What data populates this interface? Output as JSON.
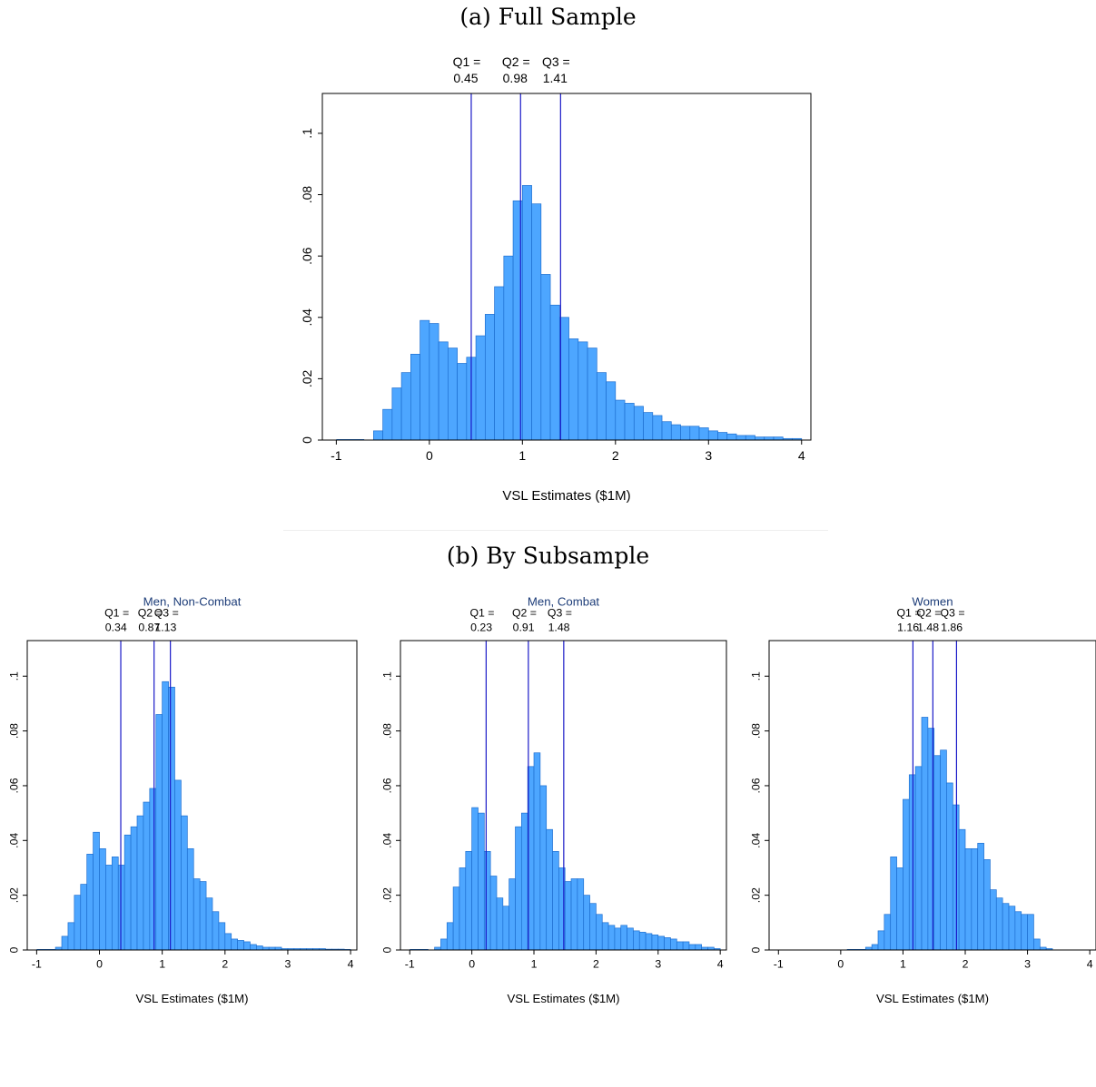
{
  "captions": {
    "a": "(a) Full Sample",
    "b": "(b) By Subsample"
  },
  "colors": {
    "bar_fill": "#4da6ff",
    "bar_edge": "#1e6fd0",
    "quartile_line": "#1a1ac8",
    "subtitle": "#1c3c78"
  },
  "chart_data": [
    {
      "type": "bar",
      "title": "",
      "xlabel": "VSL Estimates ($1M)",
      "ylabel": "",
      "xlim": [
        -1.15,
        4.1
      ],
      "ylim": [
        0,
        0.113
      ],
      "xticks": [
        "-1",
        "0",
        "1",
        "2",
        "3",
        "4"
      ],
      "yticks": [
        "0",
        ".02",
        ".04",
        ".06",
        ".08",
        ".1"
      ],
      "bin_start": -0.7,
      "bin_width": 0.1,
      "values": [
        0.0,
        0.003,
        0.01,
        0.017,
        0.022,
        0.028,
        0.039,
        0.038,
        0.032,
        0.03,
        0.025,
        0.027,
        0.034,
        0.041,
        0.05,
        0.06,
        0.078,
        0.083,
        0.077,
        0.054,
        0.044,
        0.04,
        0.033,
        0.032,
        0.03,
        0.022,
        0.019,
        0.013,
        0.012,
        0.011,
        0.009,
        0.008,
        0.006,
        0.005,
        0.0045,
        0.0045,
        0.004,
        0.003,
        0.0025,
        0.002,
        0.0015,
        0.0015,
        0.001,
        0.001,
        0.001,
        0.0005,
        0.0005
      ],
      "quartiles": [
        {
          "label": "Q1 =",
          "value": "0.45",
          "x": 0.45
        },
        {
          "label": "Q2 =",
          "value": "0.98",
          "x": 0.98
        },
        {
          "label": "Q3 =",
          "value": "1.41",
          "x": 1.41
        }
      ]
    },
    {
      "type": "bar",
      "title": "Men, Non-Combat",
      "xlabel": "VSL Estimates ($1M)",
      "ylabel": "",
      "xlim": [
        -1.15,
        4.1
      ],
      "ylim": [
        0,
        0.113
      ],
      "xticks": [
        "-1",
        "0",
        "1",
        "2",
        "3",
        "4"
      ],
      "yticks": [
        "0",
        ".02",
        ".04",
        ".06",
        ".08",
        ".1"
      ],
      "bin_start": -0.7,
      "bin_width": 0.1,
      "values": [
        0.001,
        0.005,
        0.01,
        0.02,
        0.024,
        0.035,
        0.043,
        0.037,
        0.031,
        0.034,
        0.031,
        0.042,
        0.045,
        0.049,
        0.054,
        0.059,
        0.086,
        0.098,
        0.096,
        0.062,
        0.049,
        0.037,
        0.026,
        0.025,
        0.019,
        0.014,
        0.01,
        0.006,
        0.004,
        0.0035,
        0.003,
        0.002,
        0.0015,
        0.001,
        0.001,
        0.001,
        0.0005,
        0.0005,
        0.0005,
        0.0005,
        0.0005,
        0.0005,
        0.0005,
        0.0003,
        0.0003,
        0.0003,
        0.0002
      ],
      "quartiles": [
        {
          "label": "Q1 =",
          "value": "0.34",
          "x": 0.34
        },
        {
          "label": "Q2 =",
          "value": "0.87",
          "x": 0.87
        },
        {
          "label": "Q3 =",
          "value": "1.13",
          "x": 1.13
        }
      ]
    },
    {
      "type": "bar",
      "title": "Men, Combat",
      "xlabel": "VSL Estimates ($1M)",
      "ylabel": "",
      "xlim": [
        -1.15,
        4.1
      ],
      "ylim": [
        0,
        0.113
      ],
      "xticks": [
        "-1",
        "0",
        "1",
        "2",
        "3",
        "4"
      ],
      "yticks": [
        "0",
        ".02",
        ".04",
        ".06",
        ".08",
        ".1"
      ],
      "bin_start": -0.7,
      "bin_width": 0.1,
      "values": [
        0.0,
        0.001,
        0.004,
        0.01,
        0.023,
        0.03,
        0.036,
        0.052,
        0.05,
        0.036,
        0.027,
        0.019,
        0.016,
        0.026,
        0.045,
        0.05,
        0.067,
        0.072,
        0.06,
        0.044,
        0.036,
        0.03,
        0.025,
        0.026,
        0.026,
        0.02,
        0.017,
        0.013,
        0.01,
        0.009,
        0.008,
        0.009,
        0.008,
        0.007,
        0.0065,
        0.006,
        0.0055,
        0.005,
        0.0045,
        0.004,
        0.003,
        0.003,
        0.002,
        0.002,
        0.001,
        0.001,
        0.0005
      ],
      "quartiles": [
        {
          "label": "Q1 =",
          "value": "0.23",
          "x": 0.23
        },
        {
          "label": "Q2 =",
          "value": "0.91",
          "x": 0.91
        },
        {
          "label": "Q3 =",
          "value": "1.48",
          "x": 1.48
        }
      ]
    },
    {
      "type": "bar",
      "title": "Women",
      "xlabel": "VSL Estimates ($1M)",
      "ylabel": "",
      "xlim": [
        -1.15,
        4.1
      ],
      "ylim": [
        0,
        0.113
      ],
      "xticks": [
        "-1",
        "0",
        "1",
        "2",
        "3",
        "4"
      ],
      "yticks": [
        "0",
        ".02",
        ".04",
        ".06",
        ".08",
        ".1"
      ],
      "bin_start": 0.4,
      "bin_width": 0.1,
      "values": [
        0.001,
        0.002,
        0.007,
        0.013,
        0.034,
        0.03,
        0.055,
        0.064,
        0.067,
        0.085,
        0.081,
        0.071,
        0.073,
        0.061,
        0.053,
        0.044,
        0.037,
        0.037,
        0.039,
        0.033,
        0.022,
        0.019,
        0.017,
        0.016,
        0.014,
        0.013,
        0.013,
        0.004,
        0.001,
        0.0005
      ],
      "quartiles": [
        {
          "label": "Q1 =",
          "value": "1.16",
          "x": 1.16
        },
        {
          "label": "Q2 =",
          "value": "1.48",
          "x": 1.48
        },
        {
          "label": "Q3 =",
          "value": "1.86",
          "x": 1.86
        }
      ]
    }
  ]
}
